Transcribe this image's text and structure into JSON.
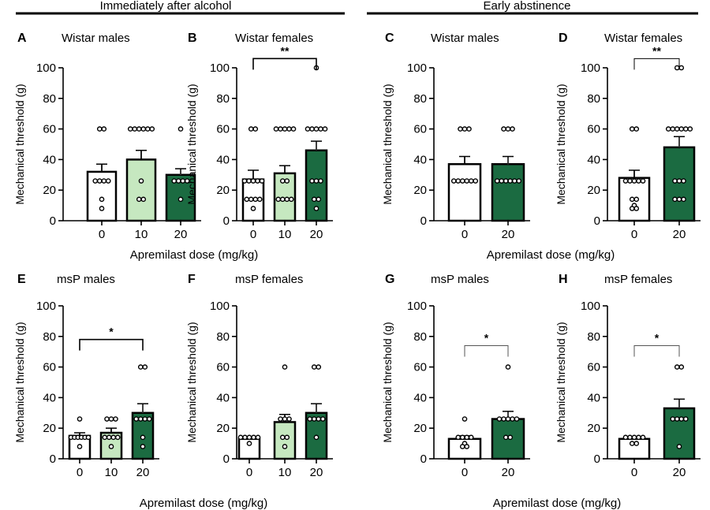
{
  "group_titles": [
    "Immediately after alcohol",
    "Early abstinence"
  ],
  "xlabels": [
    "Apremilast dose (mg/kg)",
    "Apremilast dose (mg/kg)",
    "Apremilast dose (mg/kg)",
    "Apremilast dose (mg/kg)"
  ],
  "colors": {
    "vehicle": "#ffffff",
    "dose10": "#c6e8c0",
    "dose20": "#1b6b41",
    "outline": "#000000"
  },
  "chart_data": [
    {
      "panel": "A",
      "title": "Wistar males",
      "type": "bar",
      "ylabel": "Mechanical threshold (g)",
      "ylim": [
        0,
        100
      ],
      "yticks": [
        0,
        20,
        40,
        60,
        80,
        100
      ],
      "categories": [
        "0",
        "10",
        "20"
      ],
      "values": [
        32,
        40,
        30
      ],
      "sem": [
        5,
        6,
        4
      ],
      "points": [
        [
          60,
          60,
          26,
          26,
          26,
          26,
          14,
          8
        ],
        [
          60,
          60,
          60,
          60,
          60,
          60,
          26,
          14,
          14
        ],
        [
          60,
          26,
          26,
          26,
          26,
          14
        ]
      ],
      "sig": null
    },
    {
      "panel": "B",
      "title": "Wistar females",
      "type": "bar",
      "ylabel": "Mechanical threshold (g)",
      "ylim": [
        0,
        100
      ],
      "yticks": [
        0,
        20,
        40,
        60,
        80,
        100
      ],
      "categories": [
        "0",
        "10",
        "20"
      ],
      "values": [
        27,
        31,
        46
      ],
      "sem": [
        6,
        5,
        6
      ],
      "points": [
        [
          60,
          60,
          26,
          26,
          26,
          26,
          26,
          14,
          14,
          14,
          14,
          8
        ],
        [
          60,
          60,
          60,
          60,
          60,
          26,
          26,
          14,
          14,
          14,
          14
        ],
        [
          100,
          60,
          60,
          60,
          60,
          60,
          26,
          26,
          26,
          14,
          14,
          8
        ]
      ],
      "sig": {
        "from": 0,
        "to": 2,
        "label": "**",
        "y": 106
      }
    },
    {
      "panel": "C",
      "title": "Wistar males",
      "type": "bar",
      "ylabel": "Mechanical threshold (g)",
      "ylim": [
        0,
        100
      ],
      "yticks": [
        0,
        20,
        40,
        60,
        80,
        100
      ],
      "categories": [
        "0",
        "20"
      ],
      "values": [
        37,
        37
      ],
      "sem": [
        5,
        5
      ],
      "points": [
        [
          60,
          60,
          60,
          26,
          26,
          26,
          26,
          26,
          26
        ],
        [
          60,
          60,
          60,
          26,
          26,
          26,
          26,
          26,
          26
        ]
      ],
      "sig": null
    },
    {
      "panel": "D",
      "title": "Wistar females",
      "type": "bar",
      "ylabel": "Mechanical threshold (g)",
      "ylim": [
        0,
        100
      ],
      "yticks": [
        0,
        20,
        40,
        60,
        80,
        100
      ],
      "categories": [
        "0",
        "20"
      ],
      "values": [
        28,
        48
      ],
      "sem": [
        5,
        7
      ],
      "points": [
        [
          60,
          60,
          26,
          26,
          26,
          26,
          26,
          14,
          14,
          10,
          8,
          8
        ],
        [
          100,
          100,
          60,
          60,
          60,
          60,
          60,
          60,
          26,
          26,
          26,
          14,
          14,
          14
        ]
      ],
      "sig": {
        "from": 0,
        "to": 1,
        "label": "**",
        "y": 106
      }
    },
    {
      "panel": "E",
      "title": "msP males",
      "type": "bar",
      "ylabel": "Mechanical threshold (g)",
      "ylim": [
        0,
        100
      ],
      "yticks": [
        0,
        20,
        40,
        60,
        80,
        100
      ],
      "categories": [
        "0",
        "10",
        "20"
      ],
      "values": [
        15,
        17,
        30
      ],
      "sem": [
        2,
        3,
        6
      ],
      "points": [
        [
          26,
          14,
          14,
          14,
          14,
          14,
          14,
          8
        ],
        [
          26,
          26,
          26,
          14,
          14,
          14,
          14,
          8
        ],
        [
          60,
          60,
          26,
          26,
          26,
          26,
          14,
          8
        ]
      ],
      "sig": {
        "from": 0,
        "to": 2,
        "label": "*",
        "y": 78
      }
    },
    {
      "panel": "F",
      "title": "msP females",
      "type": "bar",
      "ylabel": "Mechanical threshold (g)",
      "ylim": [
        0,
        100
      ],
      "yticks": [
        0,
        20,
        40,
        60,
        80,
        100
      ],
      "categories": [
        "0",
        "10",
        "20"
      ],
      "values": [
        13,
        24,
        30
      ],
      "sem": [
        1,
        5,
        6
      ],
      "points": [
        [
          14,
          14,
          14,
          14,
          14,
          10
        ],
        [
          60,
          26,
          26,
          26,
          14,
          14,
          8
        ],
        [
          60,
          60,
          26,
          26,
          26,
          26,
          14
        ]
      ],
      "sig": null
    },
    {
      "panel": "G",
      "title": "msP males",
      "type": "bar",
      "ylabel": "Mechanical threshold (g)",
      "ylim": [
        0,
        100
      ],
      "yticks": [
        0,
        20,
        40,
        60,
        80,
        100
      ],
      "categories": [
        "0",
        "20"
      ],
      "values": [
        13,
        26
      ],
      "sem": [
        2,
        5
      ],
      "points": [
        [
          26,
          14,
          14,
          14,
          14,
          10,
          8,
          8
        ],
        [
          60,
          26,
          26,
          26,
          26,
          26,
          14,
          14
        ]
      ],
      "sig": {
        "from": 0,
        "to": 1,
        "label": "*",
        "y": 74
      }
    },
    {
      "panel": "H",
      "title": "msP females",
      "type": "bar",
      "ylabel": "Mechanical threshold (g)",
      "ylim": [
        0,
        100
      ],
      "yticks": [
        0,
        20,
        40,
        60,
        80,
        100
      ],
      "categories": [
        "0",
        "20"
      ],
      "values": [
        13,
        33
      ],
      "sem": [
        1,
        6
      ],
      "points": [
        [
          14,
          14,
          14,
          14,
          14,
          10,
          10
        ],
        [
          60,
          60,
          26,
          26,
          26,
          26,
          8
        ]
      ],
      "sig": {
        "from": 0,
        "to": 1,
        "label": "*",
        "y": 74
      }
    }
  ]
}
